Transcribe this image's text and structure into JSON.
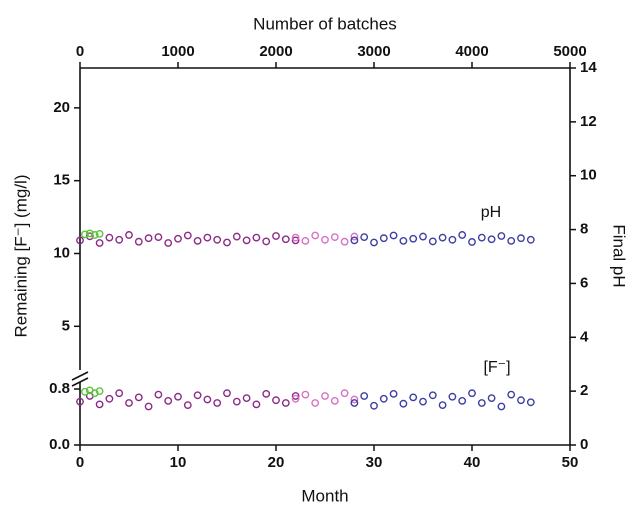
{
  "chart_data": {
    "type": "scatter",
    "x_label": "Month",
    "x2_label": "Number of batches",
    "y_label": "Remaining [F⁻] (mg/l)",
    "y2_label": "Final pH",
    "annotations": [
      "pH",
      "[F⁻]"
    ],
    "xlim": [
      0,
      50
    ],
    "xticks": [
      0,
      10,
      20,
      30,
      40,
      50
    ],
    "x2lim": [
      0,
      5000
    ],
    "x2ticks": [
      0,
      1000,
      2000,
      3000,
      4000,
      5000
    ],
    "ylim": [
      0,
      22.6
    ],
    "ybreak": [
      0.9,
      2
    ],
    "yticks": [
      {
        "value": 0,
        "label": "0.0"
      },
      0.8,
      5,
      10,
      15,
      20
    ],
    "y2lim": [
      0,
      14
    ],
    "y2ticks": [
      0,
      2,
      4,
      6,
      8,
      10,
      12,
      14
    ],
    "series": [
      {
        "color": "#8a2a86",
        "x": [
          0,
          1,
          2,
          3,
          4,
          5,
          6,
          7,
          8,
          9,
          10,
          11,
          12,
          13,
          14,
          15,
          16,
          17,
          18,
          19,
          20,
          21,
          22
        ],
        "values": [
          0.62,
          0.7,
          0.58,
          0.66,
          0.74,
          0.6,
          0.68,
          0.55,
          0.72,
          0.63,
          0.69,
          0.57,
          0.71,
          0.65,
          0.6,
          0.74,
          0.62,
          0.67,
          0.58,
          0.73,
          0.64,
          0.6,
          0.7
        ]
      },
      {
        "color": "#d870c4",
        "x": [
          22,
          23,
          24,
          25,
          26,
          27,
          28
        ],
        "values": [
          0.66,
          0.72,
          0.6,
          0.7,
          0.63,
          0.74,
          0.65
        ]
      },
      {
        "color": "#3b3ea3",
        "x": [
          28,
          29,
          30,
          31,
          32,
          33,
          34,
          35,
          36,
          37,
          38,
          39,
          40,
          41,
          42,
          43,
          44,
          45,
          46
        ],
        "values": [
          0.6,
          0.7,
          0.56,
          0.66,
          0.73,
          0.59,
          0.68,
          0.62,
          0.71,
          0.57,
          0.69,
          0.63,
          0.74,
          0.6,
          0.67,
          0.55,
          0.72,
          0.64,
          0.61
        ]
      },
      {
        "color": "#5cc43a",
        "x": [
          0.5,
          1,
          1.5,
          2
        ],
        "values": [
          0.76,
          0.78,
          0.74,
          0.77
        ]
      },
      {
        "color": "#8a2a86",
        "axis": "y2",
        "x": [
          0,
          1,
          2,
          3,
          4,
          5,
          6,
          7,
          8,
          9,
          10,
          11,
          12,
          13,
          14,
          15,
          16,
          17,
          18,
          19,
          20,
          21,
          22
        ],
        "values": [
          7.6,
          7.75,
          7.5,
          7.7,
          7.62,
          7.8,
          7.55,
          7.68,
          7.72,
          7.5,
          7.66,
          7.78,
          7.58,
          7.7,
          7.62,
          7.52,
          7.74,
          7.6,
          7.7,
          7.56,
          7.76,
          7.64,
          7.6
        ]
      },
      {
        "color": "#d870c4",
        "axis": "y2",
        "x": [
          22,
          23,
          24,
          25,
          26,
          27,
          28
        ],
        "values": [
          7.7,
          7.58,
          7.78,
          7.62,
          7.72,
          7.55,
          7.74
        ]
      },
      {
        "color": "#3b3ea3",
        "axis": "y2",
        "x": [
          28,
          29,
          30,
          31,
          32,
          33,
          34,
          35,
          36,
          37,
          38,
          39,
          40,
          41,
          42,
          43,
          44,
          45,
          46
        ],
        "values": [
          7.6,
          7.72,
          7.52,
          7.68,
          7.78,
          7.58,
          7.66,
          7.74,
          7.56,
          7.7,
          7.62,
          7.8,
          7.54,
          7.7,
          7.64,
          7.76,
          7.58,
          7.68,
          7.62
        ]
      },
      {
        "color": "#5cc43a",
        "axis": "y2",
        "x": [
          0.5,
          1,
          1.5,
          2
        ],
        "values": [
          7.82,
          7.86,
          7.8,
          7.84
        ]
      }
    ]
  }
}
